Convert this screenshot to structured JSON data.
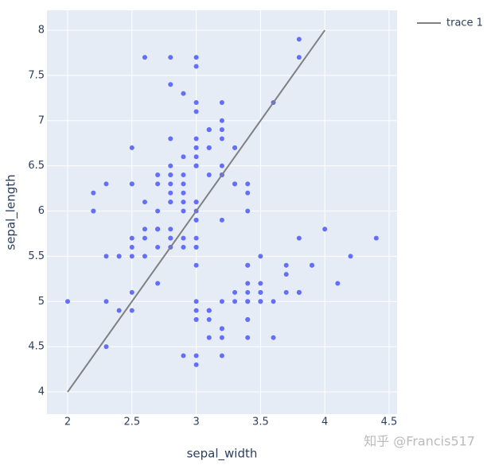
{
  "chart_data": {
    "type": "scatter",
    "x_label": "sepal_width",
    "y_label": "sepal_length",
    "xlim": [
      1.839,
      4.562
    ],
    "ylim": [
      3.754,
      8.22
    ],
    "xticks": [
      2,
      2.5,
      3,
      3.5,
      4,
      4.5
    ],
    "yticks": [
      4,
      4.5,
      5,
      5.5,
      6,
      6.5,
      7,
      7.5,
      8
    ],
    "grid": true,
    "legend": "top-right",
    "watermark": "知乎 @Francis517",
    "series": [
      {
        "mode": "markers",
        "color": "#636efa",
        "x": [
          3.5,
          3.0,
          3.2,
          3.1,
          3.6,
          3.9,
          3.4,
          3.4,
          2.9,
          3.1,
          3.7,
          3.4,
          3.0,
          3.0,
          4.0,
          4.4,
          3.9,
          3.5,
          3.8,
          3.8,
          3.4,
          3.7,
          3.6,
          3.3,
          3.4,
          3.0,
          3.4,
          3.5,
          3.4,
          3.2,
          3.1,
          3.4,
          4.1,
          4.2,
          3.1,
          3.2,
          3.5,
          3.1,
          3.0,
          3.4,
          3.5,
          2.3,
          3.2,
          3.5,
          3.8,
          3.0,
          3.8,
          3.2,
          3.7,
          3.3,
          3.2,
          3.2,
          3.1,
          2.3,
          2.8,
          2.8,
          3.3,
          2.4,
          2.9,
          2.7,
          2.0,
          3.0,
          2.2,
          2.9,
          2.9,
          3.1,
          3.0,
          2.7,
          2.2,
          2.5,
          3.2,
          2.8,
          2.5,
          2.8,
          2.9,
          3.0,
          2.8,
          3.0,
          2.9,
          2.6,
          2.4,
          2.4,
          2.7,
          2.7,
          3.0,
          3.4,
          3.1,
          2.3,
          3.0,
          2.5,
          2.6,
          3.0,
          2.6,
          2.3,
          2.7,
          3.0,
          2.9,
          2.9,
          2.5,
          2.8,
          3.3,
          2.7,
          3.0,
          2.9,
          3.0,
          3.0,
          2.5,
          2.9,
          2.5,
          3.6,
          3.2,
          2.7,
          3.0,
          2.5,
          2.8,
          3.2,
          3.0,
          3.8,
          2.6,
          2.2,
          3.2,
          2.8,
          2.8,
          2.7,
          3.3,
          3.2,
          2.8,
          3.0,
          2.8,
          3.0,
          2.8,
          3.8,
          2.8,
          2.8,
          2.6,
          3.0,
          3.4,
          3.1,
          3.0,
          3.1,
          3.1,
          3.1,
          2.7,
          3.2,
          3.3,
          3.0,
          2.5,
          3.0,
          3.4,
          3.0
        ],
        "values": [
          5.1,
          4.9,
          4.7,
          4.6,
          5.0,
          5.4,
          4.6,
          5.0,
          4.4,
          4.9,
          5.4,
          4.8,
          4.8,
          4.3,
          5.8,
          5.7,
          5.4,
          5.1,
          5.7,
          5.1,
          5.4,
          5.1,
          4.6,
          5.1,
          4.8,
          5.0,
          5.0,
          5.2,
          5.2,
          4.7,
          4.8,
          5.4,
          5.2,
          5.5,
          4.9,
          5.0,
          5.5,
          4.9,
          4.4,
          5.1,
          5.0,
          4.5,
          4.4,
          5.0,
          5.1,
          4.8,
          5.1,
          4.6,
          5.3,
          5.0,
          7.0,
          6.4,
          6.9,
          5.5,
          6.5,
          5.7,
          6.3,
          4.9,
          6.6,
          5.2,
          5.0,
          5.9,
          6.0,
          6.1,
          5.6,
          6.7,
          5.6,
          5.8,
          6.2,
          5.6,
          5.9,
          6.1,
          6.3,
          6.1,
          6.4,
          6.6,
          6.8,
          6.7,
          6.0,
          5.7,
          5.5,
          5.5,
          5.8,
          6.0,
          5.4,
          6.0,
          6.7,
          6.3,
          5.6,
          5.5,
          5.5,
          6.1,
          5.8,
          5.0,
          5.6,
          5.7,
          5.7,
          6.2,
          5.1,
          5.7,
          6.3,
          5.8,
          7.1,
          6.3,
          6.5,
          7.6,
          4.9,
          7.3,
          6.7,
          7.2,
          6.5,
          6.4,
          6.8,
          5.7,
          5.8,
          6.4,
          6.5,
          7.7,
          7.7,
          6.0,
          6.9,
          5.6,
          7.7,
          6.3,
          6.7,
          7.2,
          6.2,
          6.1,
          6.4,
          7.2,
          7.4,
          7.9,
          6.4,
          6.3,
          6.1,
          7.7,
          6.3,
          6.4,
          6.0,
          6.9,
          6.7,
          6.9,
          5.8,
          6.8,
          6.7,
          6.7,
          6.3,
          6.5,
          6.2,
          5.9
        ]
      },
      {
        "mode": "lines",
        "name": "trace 1",
        "color": "#808080",
        "x": [
          2,
          4
        ],
        "values": [
          4,
          8
        ]
      }
    ]
  }
}
